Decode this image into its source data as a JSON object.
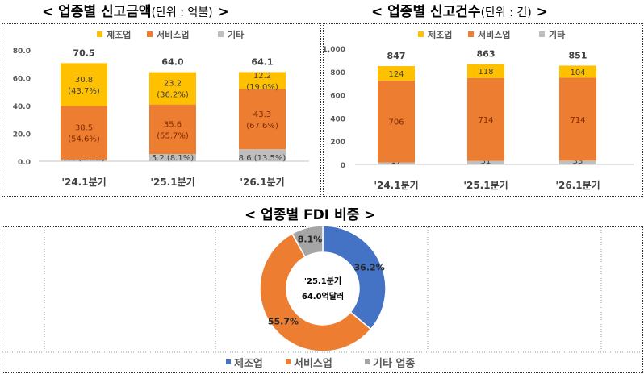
{
  "colors": {
    "manufacturing": "#FFC000",
    "services": "#ED7D31",
    "other": "#BFBFBF",
    "pie_manufacturing": "#4472C4",
    "pie_services": "#ED7D31",
    "pie_other": "#A5A5A5"
  },
  "chart_data": [
    {
      "type": "bar",
      "stacked": true,
      "title": "< 업종별 신고금액",
      "title_unit": "(단위 : 억불)",
      "title_end": ">",
      "categories": [
        "'24.1분기",
        "'25.1분기",
        "'26.1분기"
      ],
      "yticks": [
        "0.0",
        "20.0",
        "40.0",
        "60.0",
        "80.0"
      ],
      "ylim": [
        0,
        80
      ],
      "legend": [
        "제조업",
        "서비스업",
        "기타"
      ],
      "legend_position": "top",
      "totals": [
        "70.5",
        "64.0",
        "64.1"
      ],
      "series": [
        {
          "name": "기타",
          "values": [
            1.2,
            5.2,
            8.6
          ],
          "labels": [
            "1.2 (1.8%)",
            "5.2 (8.1%)",
            "8.6 (13.5%)"
          ]
        },
        {
          "name": "서비스업",
          "values": [
            38.5,
            35.6,
            43.3
          ],
          "labels": [
            "38.5",
            "35.6",
            "43.3"
          ],
          "pct": [
            "(54.6%)",
            "(55.7%)",
            "(67.6%)"
          ]
        },
        {
          "name": "제조업",
          "values": [
            30.8,
            23.2,
            12.2
          ],
          "labels": [
            "30.8",
            "23.2",
            "12.2"
          ],
          "pct": [
            "(43.7%)",
            "(36.2%)",
            "(19.0%)"
          ]
        }
      ]
    },
    {
      "type": "bar",
      "stacked": true,
      "title": "< 업종별 신고건수",
      "title_unit": "(단위 : 건)",
      "title_end": ">",
      "categories": [
        "'24.1분기",
        "'25.1분기",
        "'26.1분기"
      ],
      "yticks": [
        "0",
        "200",
        "400",
        "600",
        "800",
        "1,000"
      ],
      "ylim": [
        0,
        1000
      ],
      "legend": [
        "제조업",
        "서비스업",
        "기타"
      ],
      "legend_position": "top",
      "totals": [
        "847",
        "863",
        "851"
      ],
      "series": [
        {
          "name": "기타",
          "values": [
            17,
            31,
            33
          ],
          "labels": [
            "17",
            "31",
            "33"
          ]
        },
        {
          "name": "서비스업",
          "values": [
            706,
            714,
            714
          ],
          "labels": [
            "706",
            "714",
            "714"
          ]
        },
        {
          "name": "제조업",
          "values": [
            124,
            118,
            104
          ],
          "labels": [
            "124",
            "118",
            "104"
          ]
        }
      ]
    },
    {
      "type": "pie",
      "donut": true,
      "title": "< 업종별 FDI 비중 >",
      "center_label": [
        "'25.1분기",
        "64.0억달러"
      ],
      "slices": [
        {
          "name": "제조업",
          "value": 36.2,
          "label": "36.2%"
        },
        {
          "name": "서비스업",
          "value": 55.7,
          "label": "55.7%"
        },
        {
          "name": "기타 업종",
          "value": 8.1,
          "label": "8.1%"
        }
      ],
      "legend_position": "bottom"
    }
  ]
}
